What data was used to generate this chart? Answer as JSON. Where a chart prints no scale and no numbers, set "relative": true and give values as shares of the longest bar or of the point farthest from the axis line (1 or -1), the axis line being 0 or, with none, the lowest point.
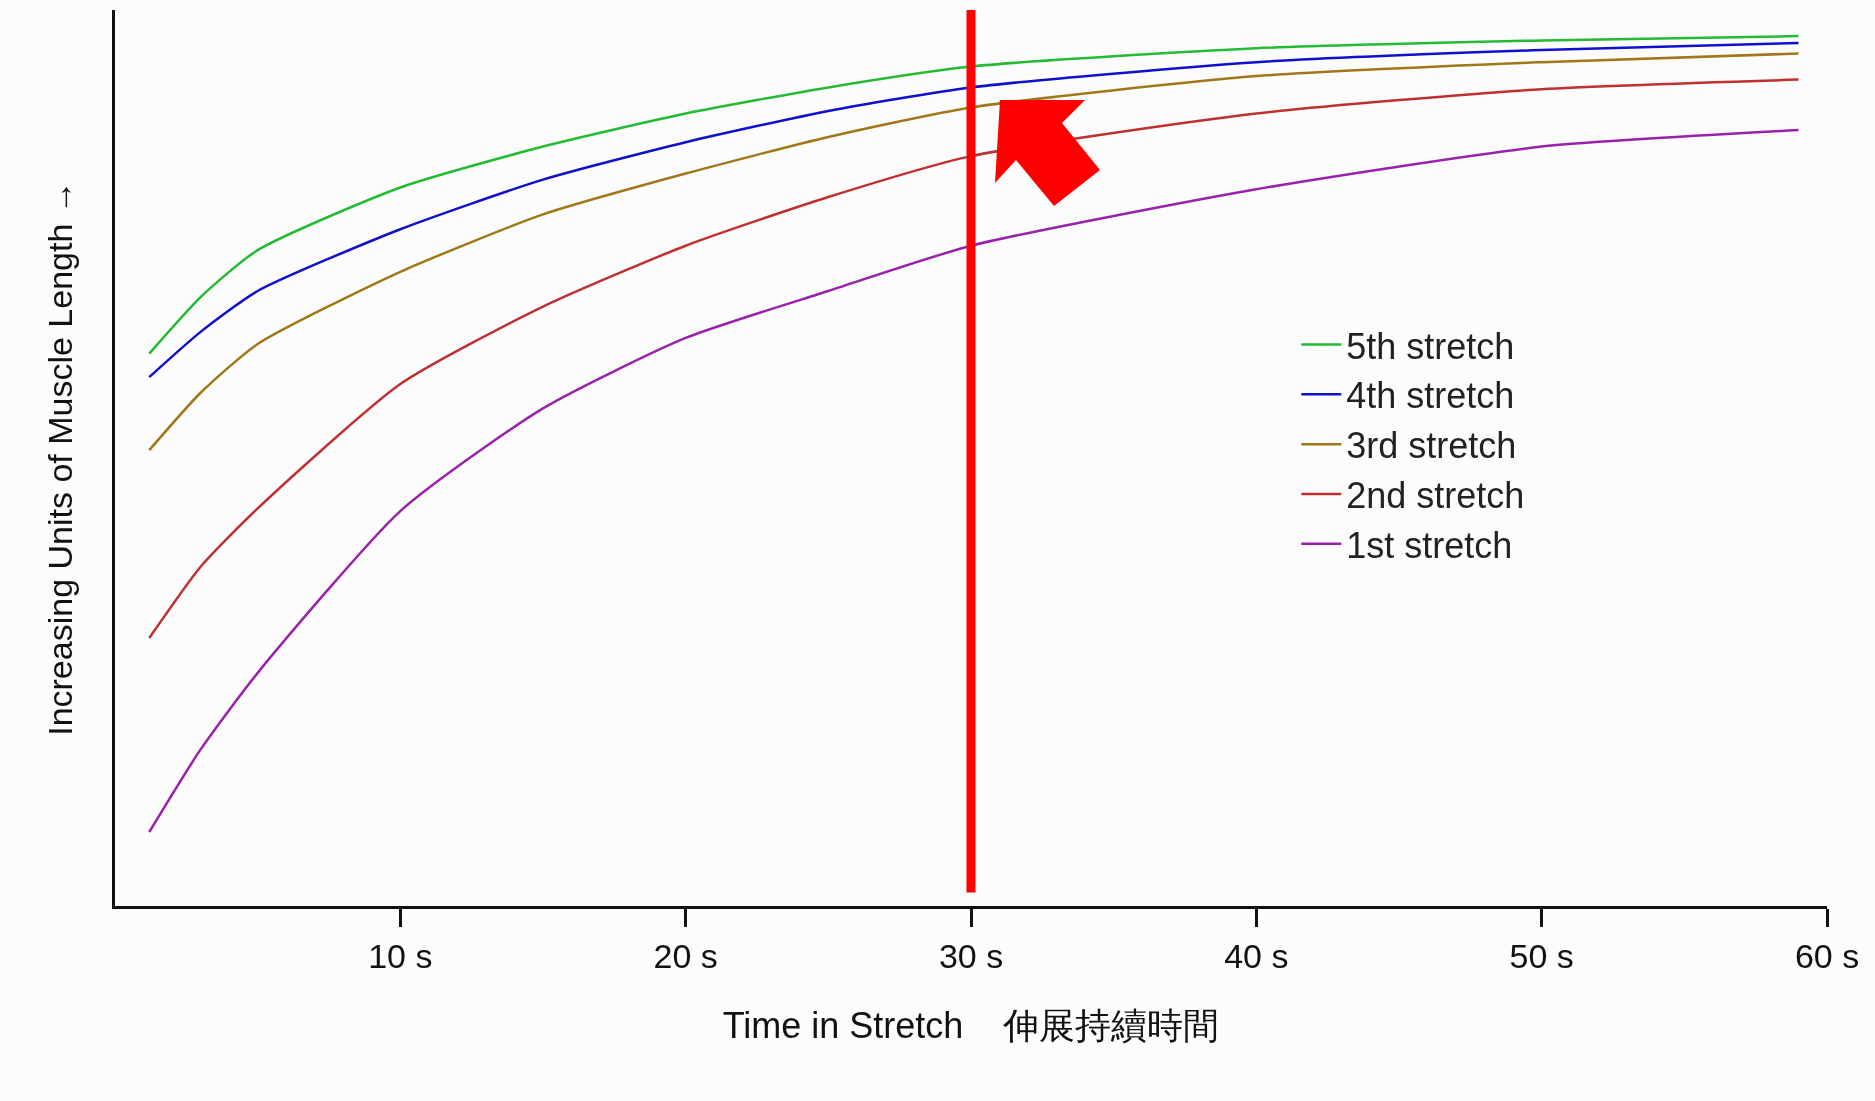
{
  "chart_data": {
    "type": "line",
    "relative": true,
    "xlabel": "Time in Stretch    伸展持續時間",
    "ylabel": "Increasing Units of Muscle Length →",
    "xlim": [
      0,
      60
    ],
    "xticks": [
      {
        "value": 10,
        "label": "10 s"
      },
      {
        "value": 20,
        "label": "20 s"
      },
      {
        "value": 30,
        "label": "30 s"
      },
      {
        "value": 40,
        "label": "40 s"
      },
      {
        "value": 50,
        "label": "50 s"
      },
      {
        "value": 60,
        "label": "60 s"
      }
    ],
    "x": [
      1.2,
      3,
      5,
      10,
      15,
      20,
      25,
      30,
      40,
      50,
      59
    ],
    "series": [
      {
        "name": "5th stretch",
        "color": "#22bb33",
        "values": [
          0.635,
          0.7,
          0.754,
          0.826,
          0.873,
          0.911,
          0.941,
          0.965,
          0.986,
          0.995,
          1.0
        ]
      },
      {
        "name": "4th stretch",
        "color": "#1010cc",
        "values": [
          0.608,
          0.66,
          0.707,
          0.778,
          0.835,
          0.878,
          0.914,
          0.941,
          0.97,
          0.984,
          0.992
        ]
      },
      {
        "name": "3rd stretch",
        "color": "#a07818",
        "values": [
          0.524,
          0.59,
          0.646,
          0.729,
          0.795,
          0.842,
          0.884,
          0.918,
          0.954,
          0.97,
          0.98
        ]
      },
      {
        "name": "2nd stretch",
        "color": "#c03030",
        "values": [
          0.308,
          0.39,
          0.457,
          0.6,
          0.689,
          0.759,
          0.815,
          0.862,
          0.911,
          0.939,
          0.95
        ]
      },
      {
        "name": "1st stretch",
        "color": "#9922aa",
        "values": [
          0.085,
          0.18,
          0.268,
          0.454,
          0.572,
          0.653,
          0.707,
          0.759,
          0.824,
          0.873,
          0.892
        ]
      }
    ],
    "ref_lines": [
      {
        "axis": "x",
        "value": 30,
        "color": "#ff0000"
      }
    ],
    "legend": "right",
    "grid": false,
    "marker": "none",
    "line_style": "solid"
  }
}
